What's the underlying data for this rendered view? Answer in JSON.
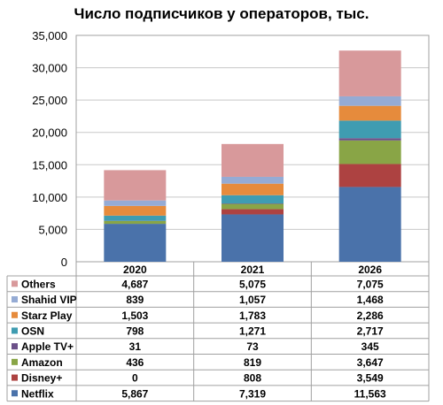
{
  "chart_data": {
    "type": "bar",
    "stacked": true,
    "title": "Число подписчиков у операторов, тыс.",
    "categories": [
      "2020",
      "2021",
      "2026"
    ],
    "ylim": [
      0,
      35000
    ],
    "yticks": [
      "0",
      "5,000",
      "10,000",
      "15,000",
      "20,000",
      "25,000",
      "30,000",
      "35,000"
    ],
    "grid": true,
    "legend_placement": "data-table-left",
    "series": [
      {
        "name": "Netflix",
        "color": "#4a72aa",
        "values": [
          5867,
          7319,
          11563
        ],
        "labels": [
          "5,867",
          "7,319",
          "11,563"
        ]
      },
      {
        "name": "Disney+",
        "color": "#ad4241",
        "values": [
          0,
          808,
          3549
        ],
        "labels": [
          "0",
          "808",
          "3,549"
        ]
      },
      {
        "name": "Amazon",
        "color": "#89a546",
        "values": [
          436,
          819,
          3647
        ],
        "labels": [
          "436",
          "819",
          "3,647"
        ]
      },
      {
        "name": "Apple TV+",
        "color": "#6b5088",
        "values": [
          31,
          73,
          345
        ],
        "labels": [
          "31",
          "73",
          "345"
        ]
      },
      {
        "name": "OSN",
        "color": "#3f9cb1",
        "values": [
          798,
          1271,
          2717
        ],
        "labels": [
          "798",
          "1,271",
          "2,717"
        ]
      },
      {
        "name": "Starz Play",
        "color": "#e68b3c",
        "values": [
          1503,
          1783,
          2286
        ],
        "labels": [
          "1,503",
          "1,783",
          "2,286"
        ]
      },
      {
        "name": "Shahid VIP",
        "color": "#95abd4",
        "values": [
          839,
          1057,
          1468
        ],
        "labels": [
          "839",
          "1,057",
          "1,468"
        ]
      },
      {
        "name": "Others",
        "color": "#d8999b",
        "values": [
          4687,
          5075,
          7075
        ],
        "labels": [
          "4,687",
          "5,075",
          "7,075"
        ]
      }
    ]
  }
}
